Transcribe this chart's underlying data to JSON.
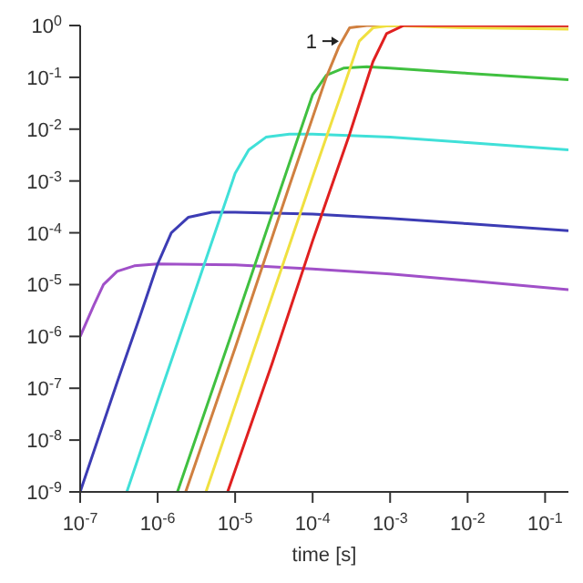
{
  "chart_data": {
    "type": "line",
    "xlabel": "time [s]",
    "log": "xy",
    "marker": "none",
    "line_style": "solid",
    "xlim": [
      1e-07,
      0.2
    ],
    "ylim": [
      1e-09,
      1
    ],
    "xticks": [
      {
        "value": 1e-07,
        "label": "10$^{-7}$"
      },
      {
        "value": 1e-06,
        "label": "10$^{-6}$"
      },
      {
        "value": 1e-05,
        "label": "10$^{-5}$"
      },
      {
        "value": 0.0001,
        "label": "10$^{-4}$"
      },
      {
        "value": 0.001,
        "label": "10$^{-3}$"
      },
      {
        "value": 0.01,
        "label": "10$^{-2}$"
      },
      {
        "value": 0.1,
        "label": "10$^{-1}$"
      }
    ],
    "yticks": [
      {
        "value": 1e-09,
        "label": "10$^{-9}$"
      },
      {
        "value": 1e-08,
        "label": "10$^{-8}$"
      },
      {
        "value": 1e-07,
        "label": "10$^{-7}$"
      },
      {
        "value": 1e-06,
        "label": "10$^{-6}$"
      },
      {
        "value": 1e-05,
        "label": "10$^{-5}$"
      },
      {
        "value": 0.0001,
        "label": "10$^{-4}$"
      },
      {
        "value": 0.001,
        "label": "10$^{-3}$"
      },
      {
        "value": 0.01,
        "label": "10$^{-2}$"
      },
      {
        "value": 0.1,
        "label": "10$^{-1}$"
      },
      {
        "value": 1,
        "label": "10$^{0}$"
      }
    ],
    "annotations": [
      {
        "text": "1",
        "x": 0.00023,
        "y": 0.5
      }
    ],
    "series": [
      {
        "color": "#a050c8",
        "x": [
          1e-07,
          1.5e-07,
          2e-07,
          3e-07,
          5e-07,
          1e-06,
          1e-05,
          0.0001,
          0.001,
          0.01,
          0.2
        ],
        "values": [
          1e-06,
          4e-06,
          1e-05,
          1.8e-05,
          2.3e-05,
          2.5e-05,
          2.4e-05,
          2e-05,
          1.6e-05,
          1.2e-05,
          8e-06
        ]
      },
      {
        "color": "#3c3cb4",
        "x": [
          1e-07,
          3e-07,
          6e-07,
          1e-06,
          1.5e-06,
          2.5e-06,
          5e-06,
          1e-05,
          0.0001,
          0.001,
          0.01,
          0.2
        ],
        "values": [
          1e-09,
          1.3e-07,
          2.6e-06,
          2.5e-05,
          0.0001,
          0.0002,
          0.00025,
          0.00025,
          0.00023,
          0.00019,
          0.00015,
          0.00011
        ]
      },
      {
        "color": "#40e0d8",
        "x": [
          4e-07,
          1e-06,
          3e-06,
          1e-05,
          1.5e-05,
          2.5e-05,
          5e-05,
          0.0001,
          0.001,
          0.01,
          0.2
        ],
        "values": [
          1e-09,
          5.8e-08,
          7e-06,
          0.0014,
          0.004,
          0.007,
          0.008,
          0.008,
          0.007,
          0.0055,
          0.004
        ]
      },
      {
        "color": "#40c040",
        "x": [
          1.8e-06,
          1e-05,
          3e-05,
          6e-05,
          0.0001,
          0.00015,
          0.00025,
          0.0005,
          0.001,
          0.01,
          0.2
        ],
        "values": [
          1e-09,
          1.8e-06,
          0.00023,
          0.0049,
          0.046,
          0.11,
          0.15,
          0.16,
          0.15,
          0.12,
          0.09
        ]
      },
      {
        "color": "#d08040",
        "x": [
          2.3e-06,
          1e-05,
          5e-05,
          0.00015,
          0.00022,
          0.0003,
          0.0005,
          0.01,
          0.2
        ],
        "values": [
          1e-09,
          6e-07,
          0.0008,
          0.1,
          0.4,
          0.9,
          1,
          1,
          0.97
        ]
      },
      {
        "color": "#f0e040",
        "x": [
          4.2e-06,
          2e-05,
          0.0001,
          0.00025,
          0.0004,
          0.0006,
          0.001,
          0.01,
          0.2
        ],
        "values": [
          1e-09,
          1e-06,
          0.0012,
          0.063,
          0.5,
          0.9,
          1,
          0.9,
          0.85
        ]
      },
      {
        "color": "#e02020",
        "x": [
          8e-06,
          3e-05,
          0.0001,
          0.0003,
          0.0006,
          0.0009,
          0.0015,
          0.01,
          0.2
        ],
        "values": [
          1e-09,
          3e-07,
          7e-05,
          0.008,
          0.2,
          0.7,
          1,
          1,
          1
        ]
      }
    ]
  }
}
